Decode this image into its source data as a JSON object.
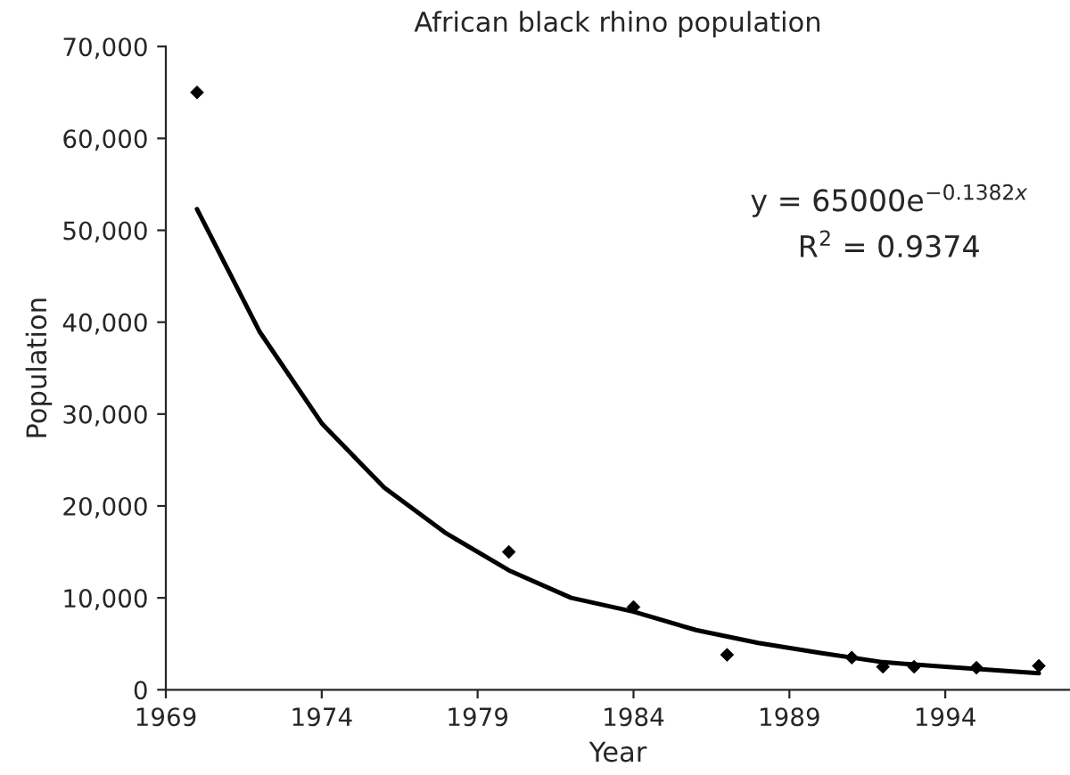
{
  "chart_data": {
    "type": "scatter",
    "title": "African black rhino population",
    "xlabel": "Year",
    "ylabel": "Population",
    "series": [
      {
        "color": "#000000",
        "marker": "diamond",
        "x": [
          1970,
          1980,
          1984,
          1987,
          1991,
          1992,
          1993,
          1995,
          1997
        ],
        "values": [
          65000,
          15000,
          9000,
          3800,
          3500,
          2500,
          2500,
          2400,
          2600
        ]
      },
      {
        "type": "line",
        "color": "#000000",
        "marker": "none",
        "line_style": "solid",
        "x": [
          1970,
          1972,
          1974,
          1976,
          1978,
          1980,
          1982,
          1984,
          1986,
          1988,
          1990,
          1992,
          1994,
          1997
        ],
        "values": [
          52300,
          39000,
          29000,
          22000,
          17000,
          13000,
          10000,
          8500,
          6500,
          5100,
          4000,
          3000,
          2500,
          1800
        ]
      }
    ],
    "annotations": [
      "y = 65000e$^{−0.1382x}$",
      "R$^{2}$ = 0.9374"
    ],
    "xlim": [
      1969,
      1998
    ],
    "xticks": [
      1969,
      1974,
      1979,
      1984,
      1989,
      1994
    ],
    "ylim": [
      0,
      70000
    ],
    "yticks": [
      {
        "value": 0,
        "label": "0"
      },
      {
        "value": 10000,
        "label": "10,000"
      },
      {
        "value": 20000,
        "label": "20,000"
      },
      {
        "value": 30000,
        "label": "30,000"
      },
      {
        "value": 40000,
        "label": "40,000"
      },
      {
        "value": 50000,
        "label": "50,000"
      },
      {
        "value": 60000,
        "label": "60,000"
      },
      {
        "value": 70000,
        "label": "70,000"
      }
    ],
    "grid": false,
    "legend": false
  }
}
